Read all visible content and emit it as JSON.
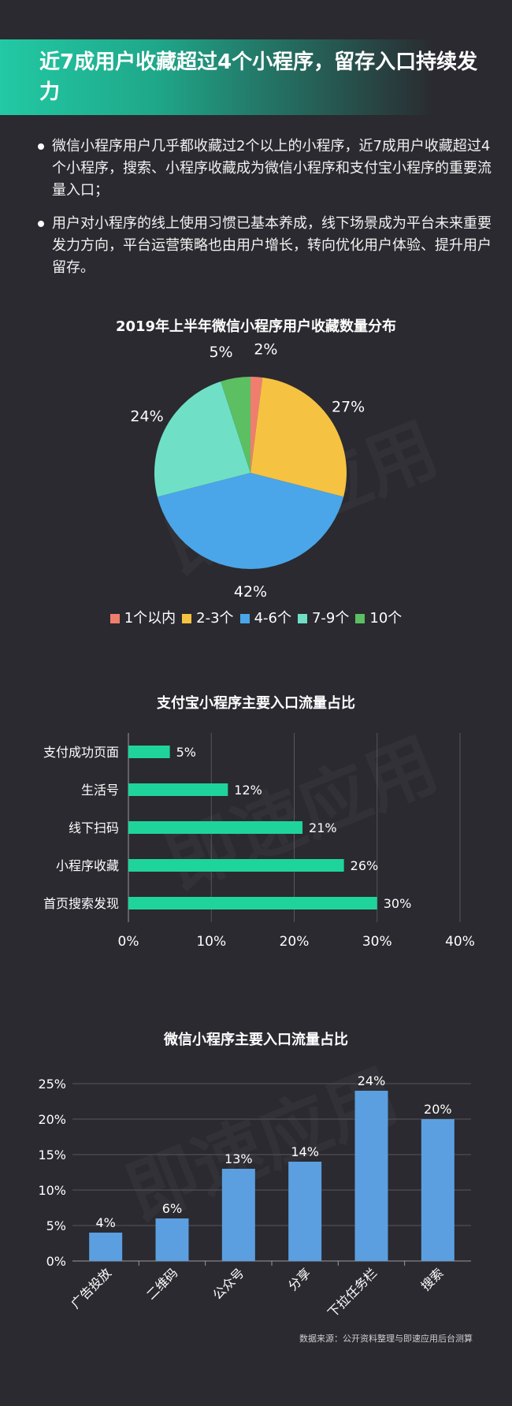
{
  "header": {
    "title": "近7成用户收藏超过4个小程序，留存入口持续发力"
  },
  "bullets": [
    "微信小程序用户几乎都收藏过2个以上的小程序，近7成用户收藏超过4个小程序，搜索、小程序收藏成为微信小程序和支付宝小程序的重要流量入口；",
    "用户对小程序的线上使用习惯已基本养成，线下场景成为平台未来重要发力方向，平台运营策略也由用户增长，转向优化用户体验、提升用户留存。"
  ],
  "watermark": "即速应用",
  "chart_data": [
    {
      "type": "pie",
      "title": "2019年上半年微信小程序用户收藏数量分布",
      "slices": [
        {
          "label": "1个以内",
          "value": 2,
          "display": "2%",
          "color": "#f07e6e"
        },
        {
          "label": "2-3个",
          "value": 27,
          "display": "27%",
          "color": "#f5c242"
        },
        {
          "label": "4-6个",
          "value": 42,
          "display": "42%",
          "color": "#4aa6e8"
        },
        {
          "label": "7-9个",
          "value": 24,
          "display": "24%",
          "color": "#6fe0c6"
        },
        {
          "label": "10个",
          "value": 5,
          "display": "5%",
          "color": "#5cbf62"
        }
      ],
      "legend_position": "bottom"
    },
    {
      "type": "bar",
      "orientation": "horizontal",
      "title": "支付宝小程序主要入口流量占比",
      "categories": [
        "支付成功页面",
        "生活号",
        "线下扫码",
        "小程序收藏",
        "首页搜索发现"
      ],
      "values": [
        5,
        12,
        21,
        26,
        30
      ],
      "value_labels": [
        "5%",
        "12%",
        "21%",
        "26%",
        "30%"
      ],
      "xlim": [
        0,
        40
      ],
      "xticks": [
        "0%",
        "10%",
        "20%",
        "30%",
        "40%"
      ],
      "color": "#1fd49a",
      "grid": true
    },
    {
      "type": "bar",
      "orientation": "vertical",
      "title": "微信小程序主要入口流量占比",
      "categories": [
        "广告投放",
        "二维码",
        "公众号",
        "分享",
        "下拉任务栏",
        "搜索"
      ],
      "values": [
        4,
        6,
        13,
        14,
        24,
        20
      ],
      "value_labels": [
        "4%",
        "6%",
        "13%",
        "14%",
        "24%",
        "20%"
      ],
      "ylim": [
        0,
        25
      ],
      "yticks": [
        "0%",
        "5%",
        "10%",
        "15%",
        "20%",
        "25%"
      ],
      "color": "#5b9fe0",
      "grid": true
    }
  ],
  "source": "数据来源：公开资料整理与即速应用后台测算"
}
